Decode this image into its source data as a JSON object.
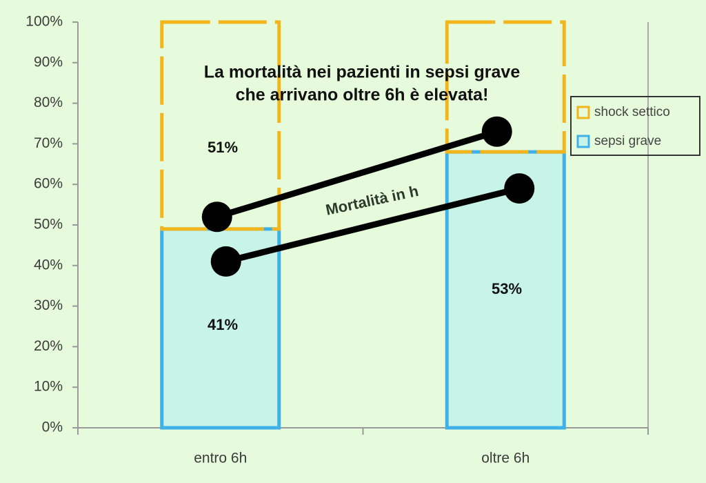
{
  "chart_data": {
    "type": "bar",
    "stacked": true,
    "title": [
      "La mortalità nei pazienti in sepsi grave",
      "che arrivano oltre 6h è elevata!"
    ],
    "categories": [
      "entro 6h",
      "oltre 6h"
    ],
    "series": [
      {
        "name": "sepsi grave",
        "color": "#3fb0e8",
        "fill": "#c8f4e8",
        "values": [
          49,
          68
        ]
      },
      {
        "name": "shock settico",
        "color": "#f2b51c",
        "values": [
          51,
          32
        ]
      }
    ],
    "lines": [
      {
        "color": "#000000",
        "values": [
          52,
          73
        ]
      },
      {
        "color": "#000000",
        "values": [
          41,
          59
        ]
      }
    ],
    "annotations": [
      "51%",
      "41%",
      "53%",
      "Mortalità in h"
    ],
    "ylim": [
      0,
      100
    ],
    "yticks": [
      {
        "value": 0,
        "label": "0%"
      },
      {
        "value": 10,
        "label": "10%"
      },
      {
        "value": 20,
        "label": "20%"
      },
      {
        "value": 30,
        "label": "30%"
      },
      {
        "value": 40,
        "label": "40%"
      },
      {
        "value": 50,
        "label": "50%"
      },
      {
        "value": 60,
        "label": "60%"
      },
      {
        "value": 70,
        "label": "70%"
      },
      {
        "value": 80,
        "label": "80%"
      },
      {
        "value": 90,
        "label": "90%"
      },
      {
        "value": 100,
        "label": "100%"
      }
    ],
    "legend": "right"
  }
}
